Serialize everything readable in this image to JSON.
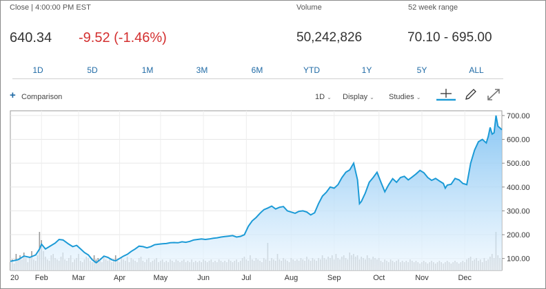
{
  "quote": {
    "close_label": "Close | 4:00:00 PM EST",
    "price": "640.34",
    "change": "-9.52 (-1.46%)",
    "volume_label": "Volume",
    "volume": "50,242,826",
    "range_label": "52 week range",
    "range": "70.10 - 695.00"
  },
  "ranges": [
    "1D",
    "5D",
    "1M",
    "3M",
    "6M",
    "YTD",
    "1Y",
    "5Y",
    "ALL"
  ],
  "toolbar": {
    "comparison": "Comparison",
    "interval": "1D",
    "display": "Display",
    "studies": "Studies"
  },
  "colors": {
    "line": "#1b9ad6",
    "fill_top": "#7cc0f2",
    "fill_bottom": "#eef7fe",
    "volume": "#9a9a9a",
    "accent": "#1f6aa5",
    "down": "#d32f2f"
  },
  "icons": [
    "plus-icon",
    "crosshair-icon",
    "pencil-icon",
    "expand-icon"
  ],
  "chart_data": {
    "type": "area",
    "ylim": [
      50,
      720
    ],
    "yticks": [
      "100.00",
      "200.00",
      "300.00",
      "400.00",
      "500.00",
      "600.00",
      "700.00"
    ],
    "ytick_values": [
      100,
      200,
      300,
      400,
      500,
      600,
      700
    ],
    "xtick_labels": [
      "20",
      "Feb",
      "Mar",
      "Apr",
      "May",
      "Jun",
      "Jul",
      "Aug",
      "Sep",
      "Oct",
      "Nov",
      "Dec"
    ],
    "xtick_positions": [
      0,
      16,
      35,
      56,
      77,
      99,
      121,
      144,
      166,
      189,
      211,
      233
    ],
    "x_max": 252,
    "price": [
      [
        0,
        88
      ],
      [
        4,
        95
      ],
      [
        7,
        110
      ],
      [
        10,
        105
      ],
      [
        13,
        115
      ],
      [
        15,
        140
      ],
      [
        16,
        160
      ],
      [
        17,
        150
      ],
      [
        18,
        140
      ],
      [
        20,
        150
      ],
      [
        23,
        165
      ],
      [
        25,
        180
      ],
      [
        27,
        178
      ],
      [
        30,
        160
      ],
      [
        32,
        150
      ],
      [
        34,
        155
      ],
      [
        36,
        140
      ],
      [
        38,
        125
      ],
      [
        40,
        115
      ],
      [
        42,
        95
      ],
      [
        44,
        82
      ],
      [
        46,
        95
      ],
      [
        48,
        110
      ],
      [
        50,
        105
      ],
      [
        52,
        95
      ],
      [
        54,
        90
      ],
      [
        56,
        100
      ],
      [
        58,
        110
      ],
      [
        60,
        118
      ],
      [
        62,
        130
      ],
      [
        64,
        140
      ],
      [
        66,
        152
      ],
      [
        68,
        150
      ],
      [
        70,
        145
      ],
      [
        72,
        150
      ],
      [
        74,
        158
      ],
      [
        76,
        160
      ],
      [
        78,
        162
      ],
      [
        80,
        163
      ],
      [
        82,
        166
      ],
      [
        84,
        167
      ],
      [
        86,
        166
      ],
      [
        88,
        170
      ],
      [
        90,
        168
      ],
      [
        92,
        172
      ],
      [
        94,
        178
      ],
      [
        96,
        180
      ],
      [
        98,
        182
      ],
      [
        100,
        180
      ],
      [
        102,
        182
      ],
      [
        104,
        185
      ],
      [
        106,
        187
      ],
      [
        108,
        190
      ],
      [
        110,
        192
      ],
      [
        112,
        194
      ],
      [
        114,
        196
      ],
      [
        116,
        190
      ],
      [
        118,
        193
      ],
      [
        120,
        200
      ],
      [
        122,
        235
      ],
      [
        124,
        258
      ],
      [
        126,
        272
      ],
      [
        128,
        290
      ],
      [
        130,
        305
      ],
      [
        132,
        312
      ],
      [
        134,
        320
      ],
      [
        136,
        308
      ],
      [
        138,
        315
      ],
      [
        140,
        318
      ],
      [
        142,
        300
      ],
      [
        144,
        295
      ],
      [
        146,
        290
      ],
      [
        148,
        298
      ],
      [
        150,
        300
      ],
      [
        152,
        295
      ],
      [
        154,
        283
      ],
      [
        156,
        292
      ],
      [
        158,
        330
      ],
      [
        160,
        362
      ],
      [
        162,
        378
      ],
      [
        164,
        400
      ],
      [
        166,
        395
      ],
      [
        168,
        410
      ],
      [
        170,
        440
      ],
      [
        172,
        462
      ],
      [
        174,
        472
      ],
      [
        176,
        500
      ],
      [
        178,
        430
      ],
      [
        179,
        330
      ],
      [
        180,
        340
      ],
      [
        182,
        375
      ],
      [
        184,
        420
      ],
      [
        186,
        440
      ],
      [
        188,
        462
      ],
      [
        190,
        420
      ],
      [
        192,
        380
      ],
      [
        194,
        410
      ],
      [
        196,
        435
      ],
      [
        198,
        420
      ],
      [
        200,
        440
      ],
      [
        202,
        445
      ],
      [
        204,
        430
      ],
      [
        206,
        442
      ],
      [
        208,
        455
      ],
      [
        210,
        470
      ],
      [
        212,
        460
      ],
      [
        214,
        440
      ],
      [
        216,
        428
      ],
      [
        218,
        436
      ],
      [
        220,
        425
      ],
      [
        222,
        415
      ],
      [
        223,
        395
      ],
      [
        224,
        408
      ],
      [
        226,
        412
      ],
      [
        228,
        436
      ],
      [
        230,
        430
      ],
      [
        232,
        415
      ],
      [
        234,
        410
      ],
      [
        236,
        500
      ],
      [
        238,
        555
      ],
      [
        240,
        590
      ],
      [
        242,
        600
      ],
      [
        244,
        585
      ],
      [
        245,
        612
      ],
      [
        246,
        650
      ],
      [
        247,
        622
      ],
      [
        248,
        628
      ],
      [
        249,
        700
      ],
      [
        250,
        655
      ],
      [
        251,
        648
      ],
      [
        252,
        640
      ]
    ],
    "volume": [
      [
        0,
        30
      ],
      [
        1,
        40
      ],
      [
        2,
        25
      ],
      [
        3,
        60
      ],
      [
        4,
        35
      ],
      [
        5,
        55
      ],
      [
        6,
        40
      ],
      [
        7,
        65
      ],
      [
        8,
        45
      ],
      [
        9,
        30
      ],
      [
        10,
        50
      ],
      [
        11,
        70
      ],
      [
        12,
        40
      ],
      [
        13,
        35
      ],
      [
        14,
        55
      ],
      [
        15,
        140
      ],
      [
        16,
        110
      ],
      [
        17,
        70
      ],
      [
        18,
        50
      ],
      [
        19,
        40
      ],
      [
        20,
        35
      ],
      [
        21,
        55
      ],
      [
        22,
        60
      ],
      [
        23,
        45
      ],
      [
        24,
        40
      ],
      [
        25,
        35
      ],
      [
        26,
        50
      ],
      [
        27,
        65
      ],
      [
        28,
        40
      ],
      [
        29,
        35
      ],
      [
        30,
        45
      ],
      [
        31,
        55
      ],
      [
        32,
        30
      ],
      [
        33,
        40
      ],
      [
        34,
        45
      ],
      [
        35,
        60
      ],
      [
        36,
        35
      ],
      [
        37,
        30
      ],
      [
        38,
        40
      ],
      [
        39,
        50
      ],
      [
        40,
        45
      ],
      [
        41,
        35
      ],
      [
        42,
        30
      ],
      [
        43,
        55
      ],
      [
        44,
        40
      ],
      [
        45,
        45
      ],
      [
        46,
        35
      ],
      [
        47,
        30
      ],
      [
        48,
        50
      ],
      [
        49,
        40
      ],
      [
        50,
        35
      ],
      [
        51,
        45
      ],
      [
        52,
        30
      ],
      [
        53,
        40
      ],
      [
        54,
        55
      ],
      [
        55,
        35
      ],
      [
        56,
        30
      ],
      [
        57,
        45
      ],
      [
        58,
        40
      ],
      [
        59,
        35
      ],
      [
        60,
        50
      ],
      [
        61,
        30
      ],
      [
        62,
        45
      ],
      [
        63,
        40
      ],
      [
        64,
        35
      ],
      [
        65,
        30
      ],
      [
        66,
        45
      ],
      [
        67,
        50
      ],
      [
        68,
        35
      ],
      [
        69,
        30
      ],
      [
        70,
        40
      ],
      [
        71,
        45
      ],
      [
        72,
        30
      ],
      [
        73,
        35
      ],
      [
        74,
        40
      ],
      [
        75,
        45
      ],
      [
        76,
        30
      ],
      [
        77,
        35
      ],
      [
        78,
        40
      ],
      [
        79,
        30
      ],
      [
        80,
        35
      ],
      [
        81,
        30
      ],
      [
        82,
        40
      ],
      [
        83,
        35
      ],
      [
        84,
        30
      ],
      [
        85,
        40
      ],
      [
        86,
        35
      ],
      [
        87,
        30
      ],
      [
        88,
        35
      ],
      [
        89,
        40
      ],
      [
        90,
        30
      ],
      [
        91,
        35
      ],
      [
        92,
        30
      ],
      [
        93,
        40
      ],
      [
        94,
        30
      ],
      [
        95,
        35
      ],
      [
        96,
        30
      ],
      [
        97,
        35
      ],
      [
        98,
        30
      ],
      [
        99,
        40
      ],
      [
        100,
        35
      ],
      [
        101,
        30
      ],
      [
        102,
        35
      ],
      [
        103,
        40
      ],
      [
        104,
        30
      ],
      [
        105,
        35
      ],
      [
        106,
        30
      ],
      [
        107,
        40
      ],
      [
        108,
        35
      ],
      [
        109,
        30
      ],
      [
        110,
        35
      ],
      [
        111,
        30
      ],
      [
        112,
        40
      ],
      [
        113,
        35
      ],
      [
        114,
        30
      ],
      [
        115,
        35
      ],
      [
        116,
        40
      ],
      [
        117,
        30
      ],
      [
        118,
        35
      ],
      [
        119,
        45
      ],
      [
        120,
        50
      ],
      [
        121,
        40
      ],
      [
        122,
        35
      ],
      [
        123,
        55
      ],
      [
        124,
        40
      ],
      [
        125,
        35
      ],
      [
        126,
        45
      ],
      [
        127,
        40
      ],
      [
        128,
        35
      ],
      [
        129,
        30
      ],
      [
        130,
        45
      ],
      [
        131,
        40
      ],
      [
        132,
        100
      ],
      [
        133,
        35
      ],
      [
        134,
        45
      ],
      [
        135,
        40
      ],
      [
        136,
        35
      ],
      [
        137,
        60
      ],
      [
        138,
        40
      ],
      [
        139,
        35
      ],
      [
        140,
        45
      ],
      [
        141,
        40
      ],
      [
        142,
        35
      ],
      [
        143,
        30
      ],
      [
        144,
        45
      ],
      [
        145,
        40
      ],
      [
        146,
        35
      ],
      [
        147,
        40
      ],
      [
        148,
        35
      ],
      [
        149,
        45
      ],
      [
        150,
        40
      ],
      [
        151,
        35
      ],
      [
        152,
        50
      ],
      [
        153,
        40
      ],
      [
        154,
        35
      ],
      [
        155,
        45
      ],
      [
        156,
        40
      ],
      [
        157,
        35
      ],
      [
        158,
        45
      ],
      [
        159,
        40
      ],
      [
        160,
        55
      ],
      [
        161,
        45
      ],
      [
        162,
        40
      ],
      [
        163,
        50
      ],
      [
        164,
        45
      ],
      [
        165,
        55
      ],
      [
        166,
        40
      ],
      [
        167,
        60
      ],
      [
        168,
        45
      ],
      [
        169,
        40
      ],
      [
        170,
        50
      ],
      [
        171,
        55
      ],
      [
        172,
        45
      ],
      [
        173,
        40
      ],
      [
        174,
        65
      ],
      [
        175,
        55
      ],
      [
        176,
        60
      ],
      [
        177,
        50
      ],
      [
        178,
        55
      ],
      [
        179,
        40
      ],
      [
        180,
        50
      ],
      [
        181,
        45
      ],
      [
        182,
        40
      ],
      [
        183,
        55
      ],
      [
        184,
        45
      ],
      [
        185,
        40
      ],
      [
        186,
        50
      ],
      [
        187,
        45
      ],
      [
        188,
        40
      ],
      [
        189,
        45
      ],
      [
        190,
        35
      ],
      [
        191,
        30
      ],
      [
        192,
        40
      ],
      [
        193,
        35
      ],
      [
        194,
        30
      ],
      [
        195,
        40
      ],
      [
        196,
        35
      ],
      [
        197,
        30
      ],
      [
        198,
        35
      ],
      [
        199,
        40
      ],
      [
        200,
        30
      ],
      [
        201,
        35
      ],
      [
        202,
        30
      ],
      [
        203,
        35
      ],
      [
        204,
        30
      ],
      [
        205,
        40
      ],
      [
        206,
        35
      ],
      [
        207,
        30
      ],
      [
        208,
        35
      ],
      [
        209,
        30
      ],
      [
        210,
        25
      ],
      [
        211,
        30
      ],
      [
        212,
        35
      ],
      [
        213,
        30
      ],
      [
        214,
        25
      ],
      [
        215,
        30
      ],
      [
        216,
        35
      ],
      [
        217,
        30
      ],
      [
        218,
        25
      ],
      [
        219,
        30
      ],
      [
        220,
        35
      ],
      [
        221,
        30
      ],
      [
        222,
        25
      ],
      [
        223,
        30
      ],
      [
        224,
        35
      ],
      [
        225,
        30
      ],
      [
        226,
        25
      ],
      [
        227,
        30
      ],
      [
        228,
        35
      ],
      [
        229,
        30
      ],
      [
        230,
        25
      ],
      [
        231,
        30
      ],
      [
        232,
        35
      ],
      [
        233,
        30
      ],
      [
        234,
        40
      ],
      [
        235,
        45
      ],
      [
        236,
        50
      ],
      [
        237,
        35
      ],
      [
        238,
        40
      ],
      [
        239,
        45
      ],
      [
        240,
        35
      ],
      [
        241,
        40
      ],
      [
        242,
        30
      ],
      [
        243,
        45
      ],
      [
        244,
        35
      ],
      [
        245,
        40
      ],
      [
        246,
        50
      ],
      [
        247,
        60
      ],
      [
        248,
        45
      ],
      [
        249,
        140
      ],
      [
        250,
        55
      ],
      [
        251,
        45
      ],
      [
        252,
        40
      ]
    ]
  }
}
